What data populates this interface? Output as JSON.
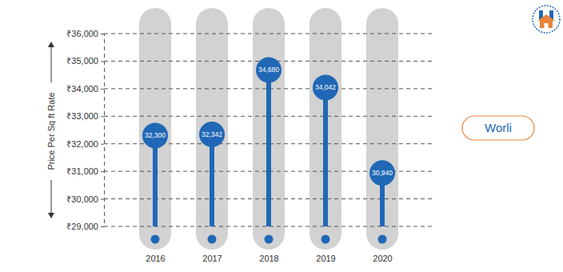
{
  "chart_data": {
    "type": "lollipop",
    "y_label": "Price Per Sq ft Rate",
    "categories": [
      "2016",
      "2017",
      "2018",
      "2019",
      "2020"
    ],
    "series": [
      {
        "name": "Worli",
        "color": "#2068b6",
        "values": [
          32300,
          32342,
          34680,
          34042,
          30940
        ],
        "value_labels": [
          "32,300",
          "32,342",
          "34,680",
          "34,042",
          "30,940"
        ]
      }
    ],
    "ylim": [
      29000,
      36000
    ],
    "yticks": [
      {
        "value": 29000,
        "label": "₹29,000"
      },
      {
        "value": 30000,
        "label": "₹30,000"
      },
      {
        "value": 31000,
        "label": "₹31,000"
      },
      {
        "value": 32000,
        "label": "₹32,000"
      },
      {
        "value": 33000,
        "label": "₹33,000"
      },
      {
        "value": 34000,
        "label": "₹34,000"
      },
      {
        "value": 35000,
        "label": "₹35,000"
      },
      {
        "value": 36000,
        "label": "₹36,000"
      }
    ],
    "grid": true,
    "data_labels": true,
    "legend": "right"
  }
}
